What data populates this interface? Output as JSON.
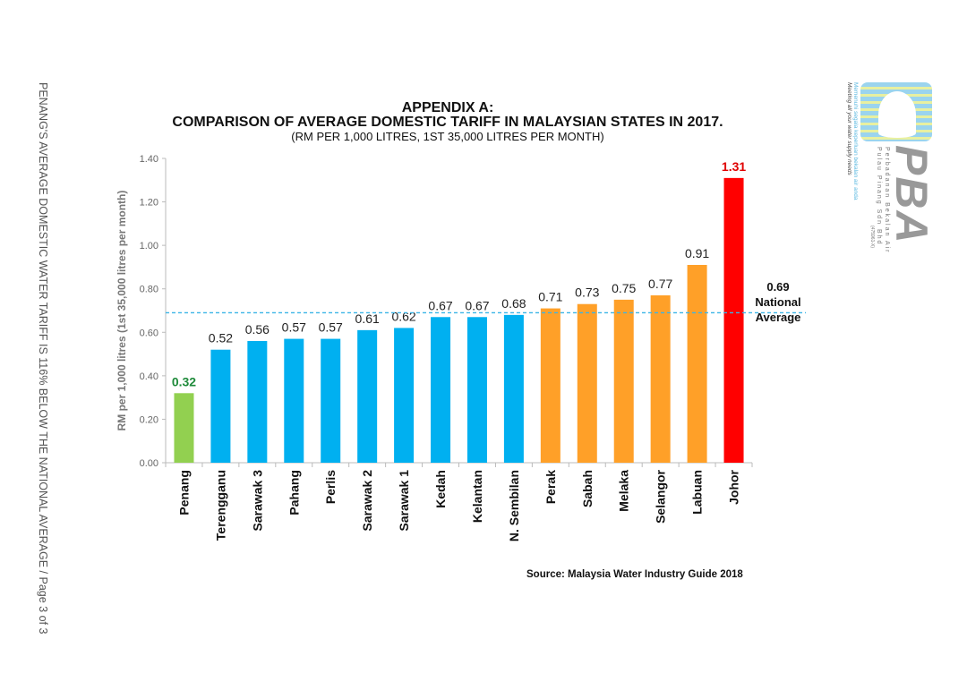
{
  "side_caption": "PENANG'S AVERAGE DOMESTIC WATER TARIFF IS 116% BELOW THE NATIONAL AVERAGE / Page 3 of 3",
  "logo": {
    "name": "PBA",
    "company": "Perbadanan Bekalan Air",
    "company2": "Pulau Pinang Sdn Bhd",
    "reg": "(475961-X)",
    "tagline_my": "Memenuhi segala keperluan bekalan air anda",
    "tagline_en": "Meeting all your water supply needs"
  },
  "source": "Source: Malaysia Water Industry Guide 2018",
  "chart_data": {
    "type": "bar",
    "title": "APPENDIX A:",
    "subtitle": "COMPARISON OF AVERAGE DOMESTIC TARIFF IN MALAYSIAN STATES IN 2017.",
    "subtitle2": "(RM PER 1,000 LITRES, 1ST 35,000 LITRES PER MONTH)",
    "ylabel": "RM per 1,000 litres (1st 35,000 litres per month)",
    "xlabel": "",
    "ylim": [
      0,
      1.4
    ],
    "yticks": [
      "0.00",
      "0.20",
      "0.40",
      "0.60",
      "0.80",
      "1.00",
      "1.20",
      "1.40"
    ],
    "grid": false,
    "categories": [
      "Penang",
      "Terengganu",
      "Sarawak 3",
      "Pahang",
      "Perlis",
      "Sarawak 2",
      "Sarawak 1",
      "Kedah",
      "Kelantan",
      "N. Sembilan",
      "Perak",
      "Sabah",
      "Melaka",
      "Selangor",
      "Labuan",
      "Johor"
    ],
    "values": [
      0.32,
      0.52,
      0.56,
      0.57,
      0.57,
      0.61,
      0.62,
      0.67,
      0.67,
      0.68,
      0.71,
      0.73,
      0.75,
      0.77,
      0.91,
      1.31
    ],
    "value_labels": [
      "0.32",
      "0.52",
      "0.56",
      "0.57",
      "0.57",
      "0.61",
      "0.62",
      "0.67",
      "0.67",
      "0.68",
      "0.71",
      "0.73",
      "0.75",
      "0.77",
      "0.91",
      "1.31"
    ],
    "bar_colors": [
      "#92d050",
      "#00b0f0",
      "#00b0f0",
      "#00b0f0",
      "#00b0f0",
      "#00b0f0",
      "#00b0f0",
      "#00b0f0",
      "#00b0f0",
      "#00b0f0",
      "#ffa028",
      "#ffa028",
      "#ffa028",
      "#ffa028",
      "#ffa028",
      "#ff0000"
    ],
    "reference_line": {
      "value": 0.69,
      "label_value": "0.69",
      "label1": "National",
      "label2": "Average",
      "color": "#3ab4e6"
    }
  }
}
